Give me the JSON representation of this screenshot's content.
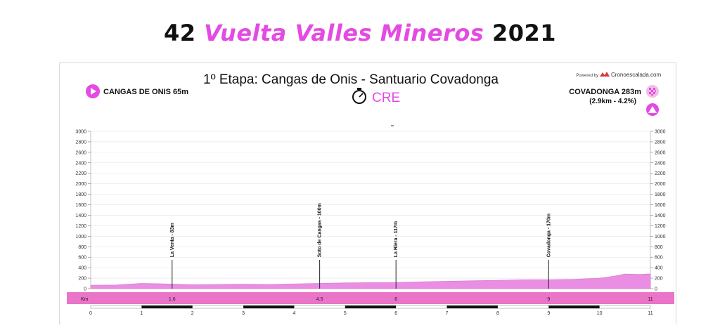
{
  "title": {
    "number": "42",
    "name": "Vuelta Valles Mineros",
    "year": "2021"
  },
  "stage_title": "1º Etapa: Cangas de Onis - Santuario Covadonga",
  "stage_type": "CRE",
  "powered_by": "Powered by",
  "brand": "Cronoescalada.com",
  "start": {
    "name": "CANGAS DE ONIS 65m"
  },
  "finish": {
    "name": "COVADONGA 283m",
    "detail": "(2.9km - 4.2%)"
  },
  "colors": {
    "accent": "#e44be3",
    "profile": "#ea8ee3",
    "band": "#ea74c8"
  },
  "icons": {
    "start": "play-icon",
    "finish": "checkered-flag-icon",
    "climb": "mountain-icon",
    "stage": "stopwatch-icon"
  },
  "chart_data": {
    "type": "area",
    "xlabel": "Km",
    "xlim": [
      0,
      11
    ],
    "ylim": [
      0,
      3000
    ],
    "y_ticks": [
      0,
      200,
      400,
      600,
      800,
      1000,
      1200,
      1400,
      1600,
      1800,
      2000,
      2200,
      2400,
      2600,
      2800,
      3000
    ],
    "x_ticks": [
      0,
      1,
      2,
      3,
      4,
      5,
      6,
      7,
      8,
      9,
      10,
      11
    ],
    "km_markers": [
      "1.6",
      "4.5",
      "6",
      "9",
      "11"
    ],
    "km_marker_positions": [
      1.6,
      4.5,
      6,
      9,
      11
    ],
    "grid": true,
    "profile": {
      "x": [
        0,
        0.5,
        1,
        1.5,
        2,
        2.5,
        3,
        3.5,
        4,
        4.5,
        5,
        5.5,
        6,
        6.5,
        7,
        7.5,
        8,
        8.5,
        9,
        9.5,
        10,
        10.3,
        10.5,
        10.8,
        11
      ],
      "y": [
        65,
        70,
        100,
        90,
        75,
        80,
        85,
        80,
        90,
        100,
        110,
        115,
        117,
        130,
        140,
        150,
        160,
        170,
        170,
        180,
        200,
        240,
        280,
        270,
        283
      ]
    },
    "waypoints": [
      {
        "km": 1.6,
        "label": "La Venta - 83m"
      },
      {
        "km": 4.5,
        "label": "Soto de Cangas - 100m"
      },
      {
        "km": 6,
        "label": "La Riera - 117m"
      },
      {
        "km": 9,
        "label": "Covadonga - 170m"
      }
    ]
  }
}
